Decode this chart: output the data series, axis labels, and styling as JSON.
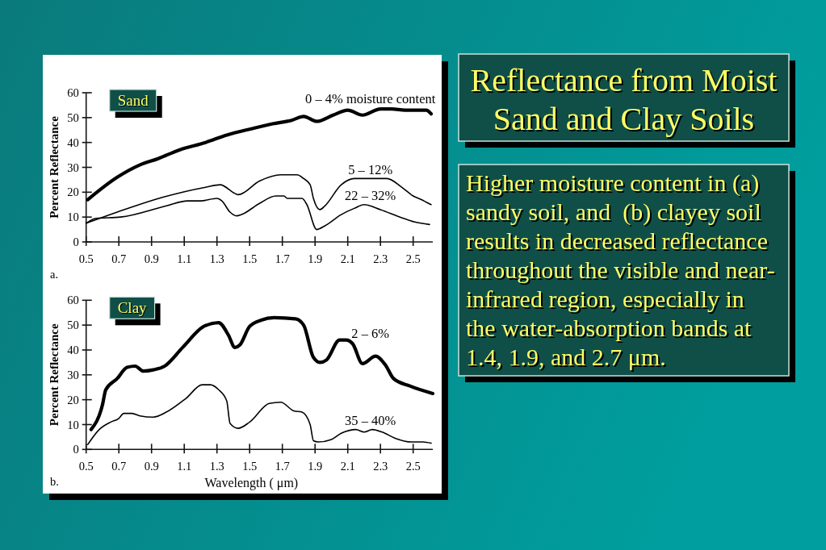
{
  "chart_data": [
    {
      "type": "line",
      "title": "Sand",
      "ylabel": "Percent Reflectance",
      "annotations": [
        "a."
      ],
      "xlim": [
        0.5,
        2.62
      ],
      "xticks": [
        0.5,
        0.7,
        0.9,
        1.1,
        1.3,
        1.5,
        1.7,
        1.9,
        2.1,
        2.3,
        2.5
      ],
      "ylim": [
        0,
        60
      ],
      "yticks": [
        0,
        10,
        20,
        30,
        40,
        50,
        60
      ],
      "series": [
        {
          "name": "0 – 4% moisture content",
          "color": "#000000",
          "x": [
            0.51,
            0.69,
            0.83,
            0.94,
            1.07,
            1.23,
            1.36,
            1.51,
            1.64,
            1.76,
            1.83,
            1.91,
            2.01,
            2.1,
            2.19,
            2.3,
            2.37,
            2.45,
            2.58,
            2.61
          ],
          "values": [
            17,
            26,
            31,
            33.5,
            37,
            40,
            43,
            45.5,
            47.5,
            49,
            50.5,
            48.5,
            51,
            53,
            51,
            53.5,
            53.5,
            53,
            53,
            51.5
          ]
        },
        {
          "name": "5 – 12%",
          "color": "#000000",
          "x": [
            0.5,
            0.69,
            0.97,
            1.23,
            1.32,
            1.41,
            1.43,
            1.56,
            1.69,
            1.79,
            1.83,
            1.87,
            1.89,
            1.93,
            1.96,
            2.06,
            2.14,
            2.34,
            2.43,
            2.5,
            2.55,
            2.58,
            2.61
          ],
          "values": [
            7.5,
            12,
            18,
            22,
            23,
            19.5,
            19,
            24.5,
            27,
            27,
            25.5,
            23,
            17.5,
            13,
            14.5,
            23,
            25.5,
            25.5,
            22,
            18.5,
            17,
            16,
            15
          ]
        },
        {
          "name": "22 – 32%",
          "color": "#000000",
          "x": [
            0.5,
            0.56,
            0.71,
            0.99,
            1.12,
            1.2,
            1.3,
            1.33,
            1.38,
            1.42,
            1.45,
            1.56,
            1.66,
            1.71,
            1.73,
            1.82,
            1.85,
            1.91,
            1.96,
            2.06,
            2.14,
            2.2,
            2.3,
            2.42,
            2.51,
            2.6
          ],
          "values": [
            7.5,
            9.5,
            10,
            14.5,
            16.5,
            16.5,
            17.5,
            16.5,
            12,
            10.5,
            11,
            15.5,
            18.5,
            18.5,
            17.5,
            17.5,
            15,
            5,
            6.5,
            11,
            13.5,
            15,
            13,
            10,
            8,
            7
          ]
        }
      ]
    },
    {
      "type": "line",
      "title": "Clay",
      "xlabel": "Wavelength ( μm)",
      "ylabel": "Percent Reflectance",
      "annotations": [
        "b."
      ],
      "xlim": [
        0.5,
        2.62
      ],
      "xticks": [
        0.5,
        0.7,
        0.9,
        1.1,
        1.3,
        1.5,
        1.7,
        1.9,
        2.1,
        2.3,
        2.5
      ],
      "ylim": [
        0,
        60
      ],
      "yticks": [
        0,
        10,
        20,
        30,
        40,
        50,
        60
      ],
      "series": [
        {
          "name": "2 – 6%",
          "color": "#000000",
          "x": [
            0.53,
            0.6,
            0.62,
            0.69,
            0.75,
            0.8,
            0.85,
            0.91,
            0.98,
            1.09,
            1.22,
            1.31,
            1.37,
            1.41,
            1.44,
            1.5,
            1.57,
            1.65,
            1.78,
            1.83,
            1.89,
            1.93,
            1.97,
            2.05,
            2.09,
            2.13,
            2.19,
            2.27,
            2.33,
            2.38,
            2.48,
            2.62
          ],
          "values": [
            8,
            18,
            24,
            28.5,
            33,
            33.5,
            31.5,
            32,
            33.5,
            41,
            49.5,
            51,
            46,
            41,
            42,
            49.5,
            52,
            53,
            52.5,
            50,
            37,
            35,
            36,
            44,
            44,
            42.5,
            34.5,
            37.5,
            34,
            28.5,
            25.5,
            22.5
          ]
        },
        {
          "name": "35 – 40%",
          "color": "#000000",
          "x": [
            0.51,
            0.58,
            0.65,
            0.7,
            0.73,
            0.78,
            0.83,
            0.91,
            0.99,
            1.11,
            1.21,
            1.26,
            1.31,
            1.36,
            1.38,
            1.43,
            1.5,
            1.62,
            1.69,
            1.77,
            1.82,
            1.87,
            1.89,
            1.92,
            2.0,
            2.06,
            2.15,
            2.2,
            2.25,
            2.31,
            2.39,
            2.49,
            2.56,
            2.61
          ],
          "values": [
            2,
            8,
            11,
            12.5,
            14.5,
            14.5,
            13.5,
            13,
            15,
            20.5,
            26,
            26,
            24,
            19.5,
            10.5,
            8.5,
            11,
            18.5,
            19,
            15.5,
            15,
            10,
            3.5,
            3,
            4,
            6.5,
            8,
            7,
            8,
            7,
            4.5,
            3,
            3,
            2.5
          ]
        }
      ]
    },
    {
      "type": "other",
      "title": "Reflectance from Moist Sand and Clay Soils",
      "annotations": [
        "Higher moisture content in (a) sandy soil, and  (b) clayey soil results in decreased reflectance throughout the visible and near-infrared region, especially in the water-absorption bands at 1.4, 1.9, and 2.7 μm."
      ]
    }
  ]
}
